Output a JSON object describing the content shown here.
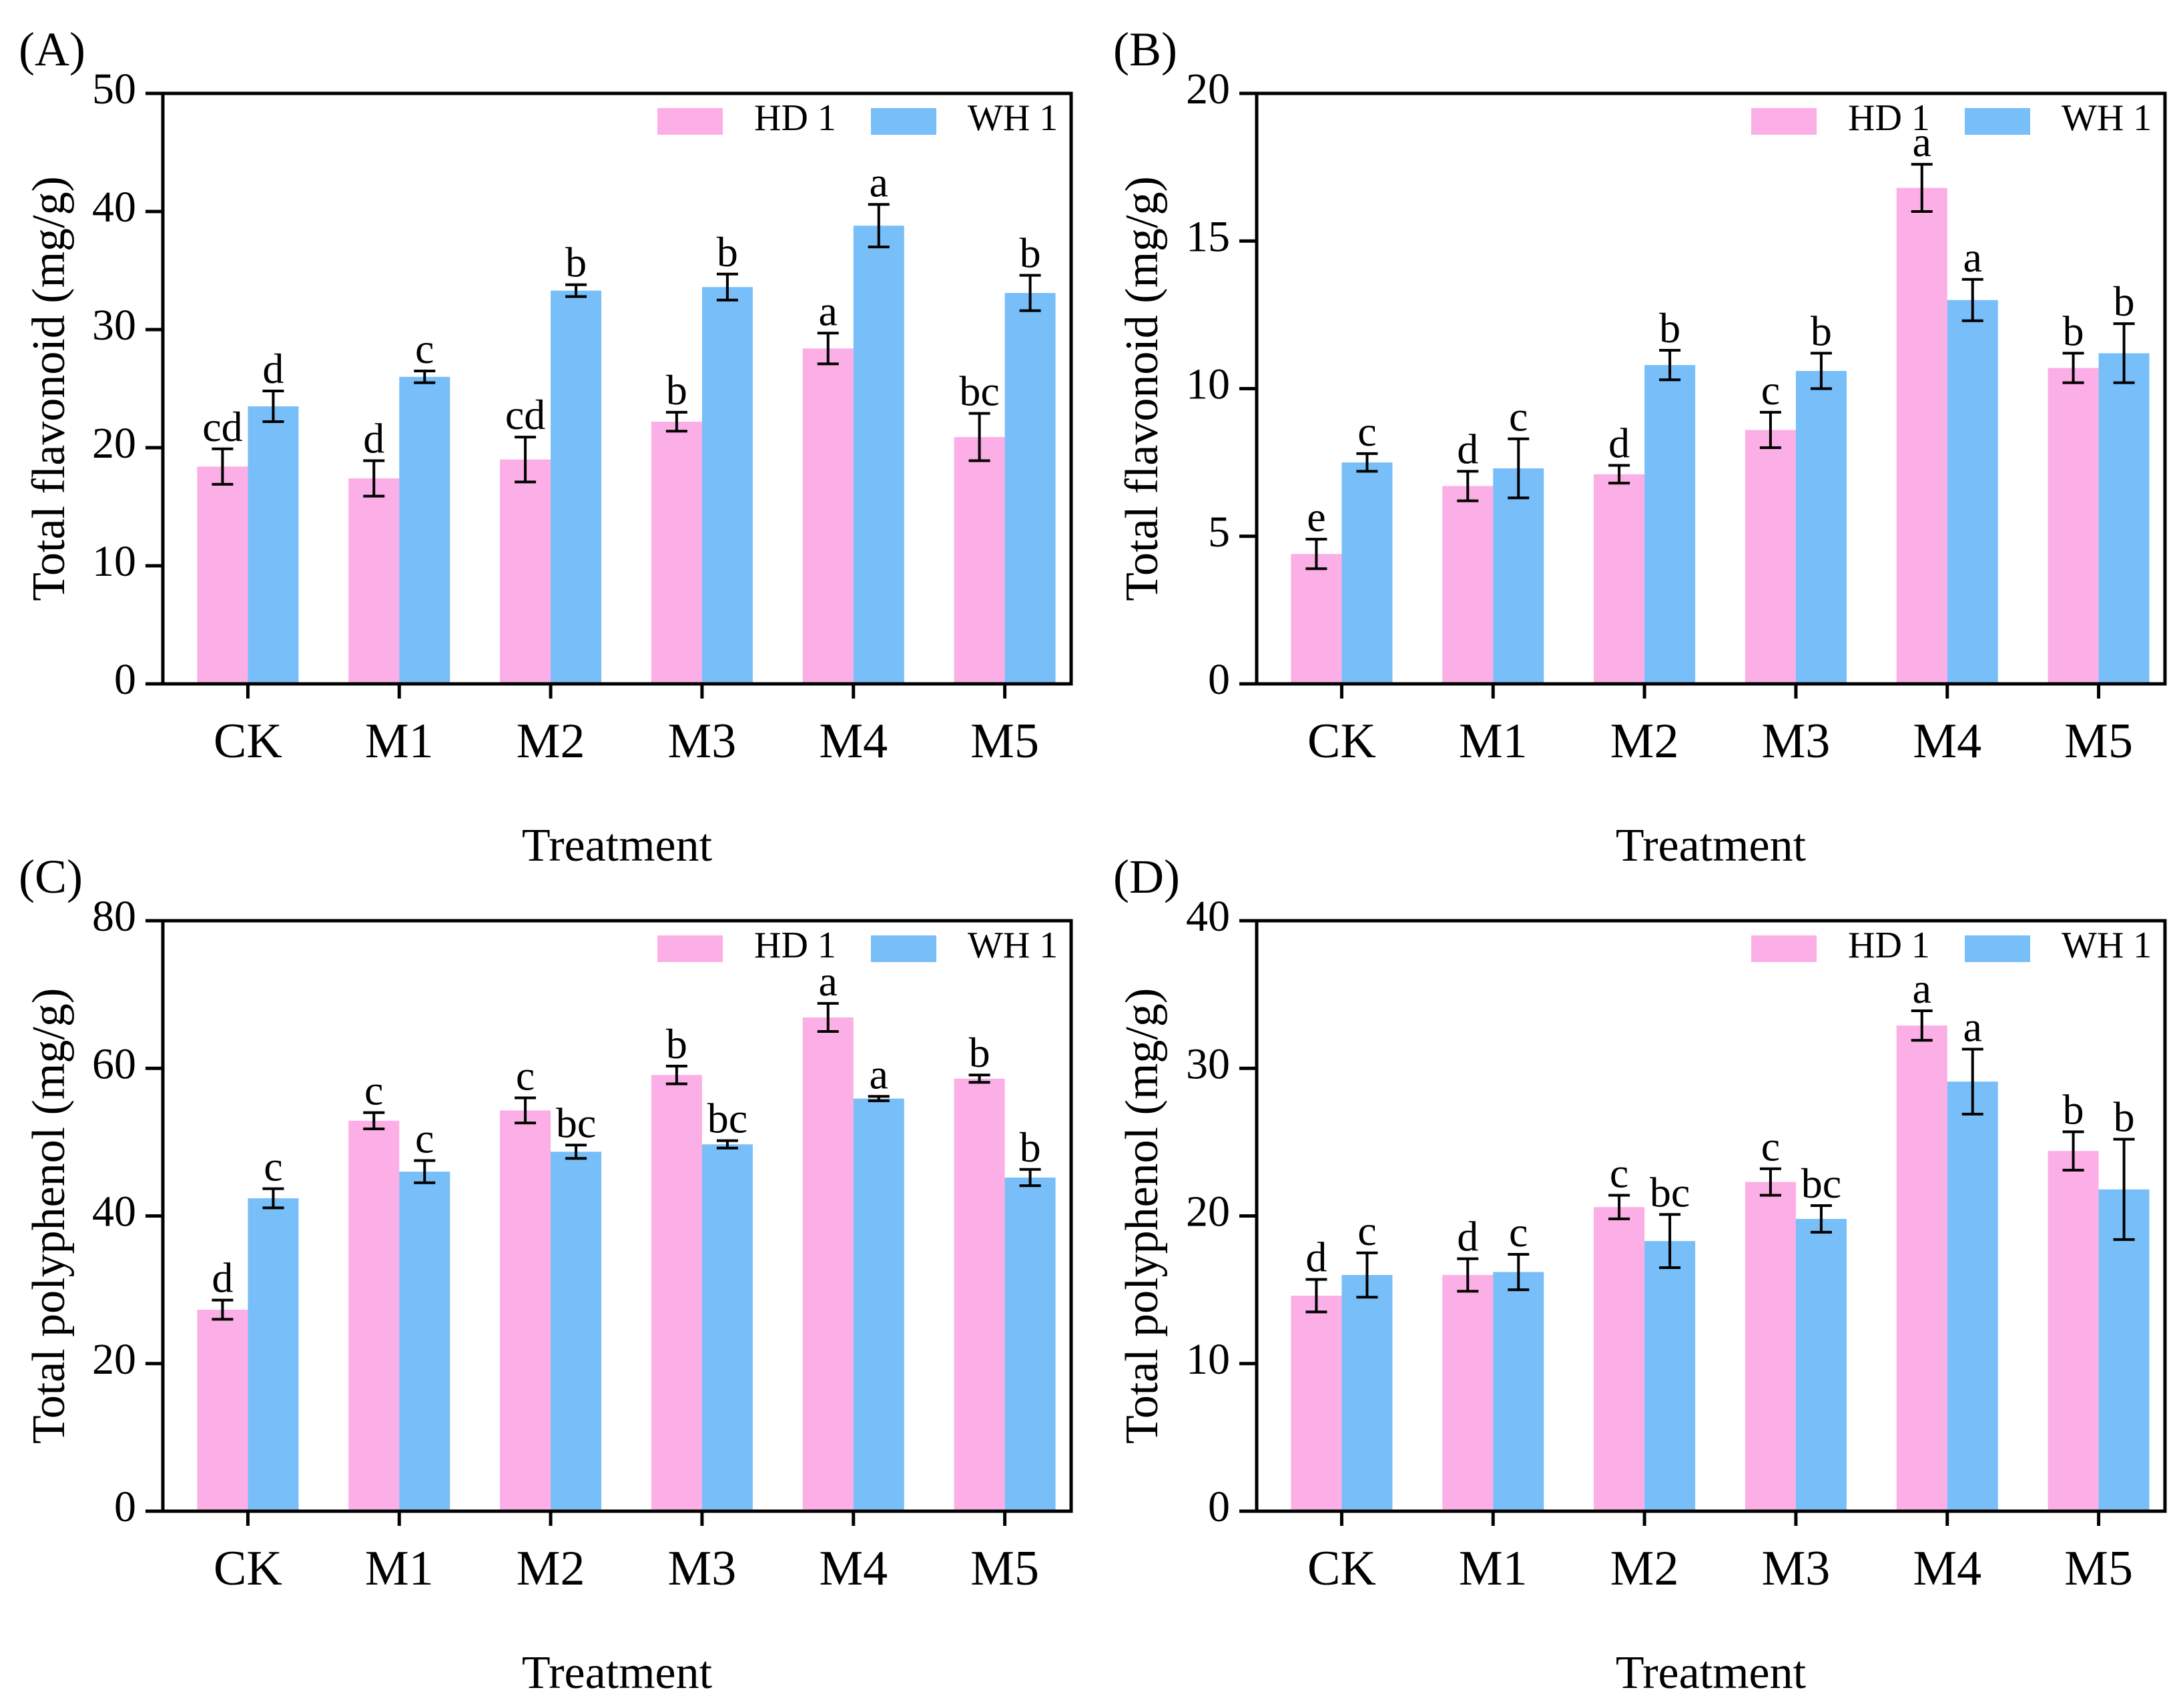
{
  "colors": {
    "hd1": "#FCAEE6",
    "wh1": "#78BEF8",
    "axis": "#000000"
  },
  "chart_data": [
    {
      "id": "A",
      "type": "bar",
      "panel_label": "(A)",
      "ylabel": "Total flavonoid (mg/g)",
      "xlabel": "Treatment",
      "ylim": [
        0,
        50
      ],
      "yticks": [
        0,
        10,
        20,
        30,
        40,
        50
      ],
      "categories": [
        "CK",
        "M1",
        "M2",
        "M3",
        "M4",
        "M5"
      ],
      "legend": [
        "HD 1",
        "WH 1"
      ],
      "series": [
        {
          "name": "HD 1",
          "values": [
            18.4,
            17.4,
            19.0,
            22.2,
            28.4,
            20.9
          ],
          "errors": [
            1.5,
            1.5,
            1.9,
            0.8,
            1.3,
            2.0
          ],
          "letters": [
            "cd",
            "d",
            "cd",
            "b",
            "a",
            "bc"
          ]
        },
        {
          "name": "WH 1",
          "values": [
            23.5,
            26.0,
            33.3,
            33.6,
            38.8,
            33.1
          ],
          "errors": [
            1.3,
            0.5,
            0.5,
            1.1,
            1.8,
            1.5
          ],
          "letters": [
            "d",
            "c",
            "b",
            "b",
            "a",
            "b"
          ]
        }
      ]
    },
    {
      "id": "B",
      "type": "bar",
      "panel_label": "(B)",
      "ylabel": "Total flavonoid (mg/g)",
      "xlabel": "Treatment",
      "ylim": [
        0,
        20
      ],
      "yticks": [
        0,
        5,
        10,
        15,
        20
      ],
      "categories": [
        "CK",
        "M1",
        "M2",
        "M3",
        "M4",
        "M5"
      ],
      "legend": [
        "HD 1",
        "WH 1"
      ],
      "series": [
        {
          "name": "HD 1",
          "values": [
            4.4,
            6.7,
            7.1,
            8.6,
            16.8,
            10.7
          ],
          "errors": [
            0.5,
            0.5,
            0.3,
            0.6,
            0.8,
            0.5
          ],
          "letters": [
            "e",
            "d",
            "d",
            "c",
            "a",
            "b"
          ]
        },
        {
          "name": "WH 1",
          "values": [
            7.5,
            7.3,
            10.8,
            10.6,
            13.0,
            11.2
          ],
          "errors": [
            0.3,
            1.0,
            0.5,
            0.6,
            0.7,
            1.0
          ],
          "letters": [
            "c",
            "c",
            "b",
            "b",
            "a",
            "b"
          ]
        }
      ]
    },
    {
      "id": "C",
      "type": "bar",
      "panel_label": "(C)",
      "ylabel": "Total polyphenol (mg/g)",
      "xlabel": "Treatment",
      "ylim": [
        0,
        80
      ],
      "yticks": [
        0,
        20,
        40,
        60,
        80
      ],
      "categories": [
        "CK",
        "M1",
        "M2",
        "M3",
        "M4",
        "M5"
      ],
      "legend": [
        "HD 1",
        "WH 1"
      ],
      "series": [
        {
          "name": "HD 1",
          "values": [
            27.3,
            52.9,
            54.3,
            59.1,
            66.9,
            58.6
          ],
          "errors": [
            1.3,
            1.1,
            1.7,
            1.2,
            1.9,
            0.5
          ],
          "letters": [
            "d",
            "c",
            "c",
            "b",
            "a",
            "b"
          ]
        },
        {
          "name": "WH 1",
          "values": [
            42.4,
            46.0,
            48.7,
            49.7,
            55.9,
            45.2
          ],
          "errors": [
            1.3,
            1.5,
            0.9,
            0.5,
            0.3,
            1.1
          ],
          "letters": [
            "c",
            "c",
            "bc",
            "bc",
            "a",
            "b"
          ]
        }
      ]
    },
    {
      "id": "D",
      "type": "bar",
      "panel_label": "(D)",
      "ylabel": "Total polyphenol (mg/g)",
      "xlabel": "Treatment",
      "ylim": [
        0,
        40
      ],
      "yticks": [
        0,
        10,
        20,
        30,
        40
      ],
      "categories": [
        "CK",
        "M1",
        "M2",
        "M3",
        "M4",
        "M5"
      ],
      "legend": [
        "HD 1",
        "WH 1"
      ],
      "series": [
        {
          "name": "HD 1",
          "values": [
            14.6,
            16.0,
            20.6,
            22.3,
            32.9,
            24.4
          ],
          "errors": [
            1.1,
            1.1,
            0.8,
            0.9,
            1.0,
            1.3
          ],
          "letters": [
            "d",
            "d",
            "c",
            "c",
            "a",
            "b"
          ]
        },
        {
          "name": "WH 1",
          "values": [
            16.0,
            16.2,
            18.3,
            19.8,
            29.1,
            21.8
          ],
          "errors": [
            1.5,
            1.2,
            1.8,
            0.9,
            2.2,
            3.4
          ],
          "letters": [
            "c",
            "c",
            "bc",
            "bc",
            "a",
            "b"
          ]
        }
      ]
    }
  ]
}
